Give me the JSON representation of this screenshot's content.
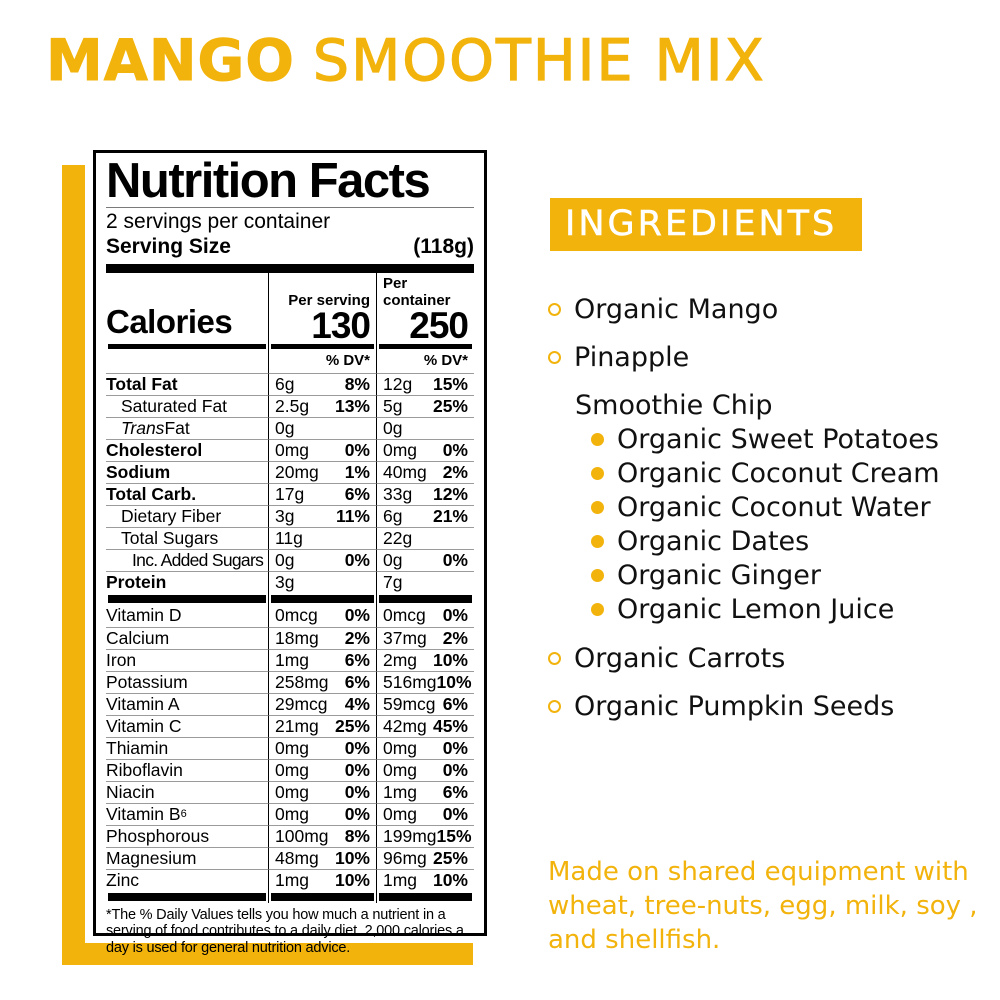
{
  "colors": {
    "accent": "#F2B30C",
    "ink": "#000000",
    "banner_text": "#FFFFFF",
    "hairline": "#9B9B9B"
  },
  "title": {
    "primary": "MANGO",
    "secondary": "SMOOTHIE MIX"
  },
  "nutrition_label": {
    "heading": "Nutrition Facts",
    "servings_line": "2 servings per container",
    "serving_size_label": "Serving Size",
    "serving_size_value": "(118g)",
    "calories_label": "Calories",
    "col_serving_header": "Per serving",
    "col_container_header": "Per container",
    "calories_per_serving": "130",
    "calories_per_container": "250",
    "dv_header": "% DV*",
    "main_rows": [
      {
        "name": "Total Fat",
        "style": "bold",
        "serving_amount": "6g",
        "serving_dv": "8%",
        "container_amount": "12g",
        "container_dv": "15%"
      },
      {
        "name": "Saturated Fat",
        "style": "indent",
        "serving_amount": "2.5g",
        "serving_dv": "13%",
        "container_amount": "5g",
        "container_dv": "25%"
      },
      {
        "name_italic": "Trans",
        "name": " Fat",
        "style": "indent",
        "serving_amount": "0g",
        "serving_dv": "",
        "container_amount": "0g",
        "container_dv": ""
      },
      {
        "name": "Cholesterol",
        "style": "bold",
        "serving_amount": "0mg",
        "serving_dv": "0%",
        "container_amount": "0mg",
        "container_dv": "0%"
      },
      {
        "name": "Sodium",
        "style": "bold",
        "serving_amount": "20mg",
        "serving_dv": "1%",
        "container_amount": "40mg",
        "container_dv": "2%"
      },
      {
        "name": "Total Carb.",
        "style": "bold",
        "serving_amount": "17g",
        "serving_dv": "6%",
        "container_amount": "33g",
        "container_dv": "12%"
      },
      {
        "name": "Dietary Fiber",
        "style": "indent",
        "serving_amount": "3g",
        "serving_dv": "11%",
        "container_amount": "6g",
        "container_dv": "21%"
      },
      {
        "name": "Total Sugars",
        "style": "indent",
        "serving_amount": "11g",
        "serving_dv": "",
        "container_amount": "22g",
        "container_dv": ""
      },
      {
        "name": "Inc. Added Sugars",
        "style": "indent2",
        "serving_amount": "0g",
        "serving_dv": "0%",
        "container_amount": "0g",
        "container_dv": "0%"
      },
      {
        "name": "Protein",
        "style": "bold",
        "serving_amount": "3g",
        "serving_dv": "",
        "container_amount": "7g",
        "container_dv": ""
      }
    ],
    "micro_rows": [
      {
        "name": "Vitamin D",
        "serving_amount": "0mcg",
        "serving_dv": "0%",
        "container_amount": "0mcg",
        "container_dv": "0%"
      },
      {
        "name": "Calcium",
        "serving_amount": "18mg",
        "serving_dv": "2%",
        "container_amount": "37mg",
        "container_dv": "2%"
      },
      {
        "name": "Iron",
        "serving_amount": "1mg",
        "serving_dv": "6%",
        "container_amount": "2mg",
        "container_dv": "10%"
      },
      {
        "name": "Potassium",
        "serving_amount": "258mg",
        "serving_dv": "6%",
        "container_amount": "516mg",
        "container_dv": "10%"
      },
      {
        "name": "Vitamin A",
        "serving_amount": "29mcg",
        "serving_dv": "4%",
        "container_amount": "59mcg",
        "container_dv": "6%"
      },
      {
        "name": "Vitamin C",
        "serving_amount": "21mg",
        "serving_dv": "25%",
        "container_amount": "42mg",
        "container_dv": "45%"
      },
      {
        "name": "Thiamin",
        "serving_amount": "0mg",
        "serving_dv": "0%",
        "container_amount": "0mg",
        "container_dv": "0%"
      },
      {
        "name": "Riboflavin",
        "serving_amount": "0mg",
        "serving_dv": "0%",
        "container_amount": "0mg",
        "container_dv": "0%"
      },
      {
        "name": "Niacin",
        "serving_amount": "0mg",
        "serving_dv": "0%",
        "container_amount": "1mg",
        "container_dv": "6%"
      },
      {
        "name": "Vitamin B",
        "name_sub": "6",
        "serving_amount": "0mg",
        "serving_dv": "0%",
        "container_amount": "0mg",
        "container_dv": "0%"
      },
      {
        "name": "Phosphorous",
        "serving_amount": "100mg",
        "serving_dv": "8%",
        "container_amount": "199mg",
        "container_dv": "15%"
      },
      {
        "name": "Magnesium",
        "serving_amount": "48mg",
        "serving_dv": "10%",
        "container_amount": "96mg",
        "container_dv": "25%"
      },
      {
        "name": "Zinc",
        "serving_amount": "1mg",
        "serving_dv": "10%",
        "container_amount": "1mg",
        "container_dv": "10%"
      }
    ],
    "footnote": "*The % Daily Values tells you how much a nutrient in a serving of food contributes to a daily diet. 2,000 calories a day is used for general nutrition advice."
  },
  "ingredients": {
    "heading": "INGREDIENTS",
    "items": [
      {
        "label": "Organic Mango",
        "bullet": "hollow",
        "level": "top"
      },
      {
        "label": "Pinapple",
        "bullet": "hollow",
        "level": "top"
      },
      {
        "label": "Smoothie Chip",
        "bullet": "none",
        "level": "group"
      },
      {
        "label": "Organic Sweet Potatoes",
        "bullet": "filled",
        "level": "sub"
      },
      {
        "label": "Organic Coconut Cream",
        "bullet": "filled",
        "level": "sub"
      },
      {
        "label": "Organic Coconut Water",
        "bullet": "filled",
        "level": "sub"
      },
      {
        "label": "Organic Dates",
        "bullet": "filled",
        "level": "sub"
      },
      {
        "label": "Organic Ginger",
        "bullet": "filled",
        "level": "sub"
      },
      {
        "label": "Organic Lemon Juice",
        "bullet": "filled",
        "level": "sub"
      },
      {
        "label": "Organic Carrots",
        "bullet": "hollow",
        "level": "top",
        "gap_top": true
      },
      {
        "label": "Organic Pumpkin Seeds",
        "bullet": "hollow",
        "level": "top"
      }
    ],
    "allergen_lines": [
      "Made on shared equipment with",
      "wheat, tree-nuts, egg, milk, soy ,",
      "and shellfish."
    ]
  }
}
